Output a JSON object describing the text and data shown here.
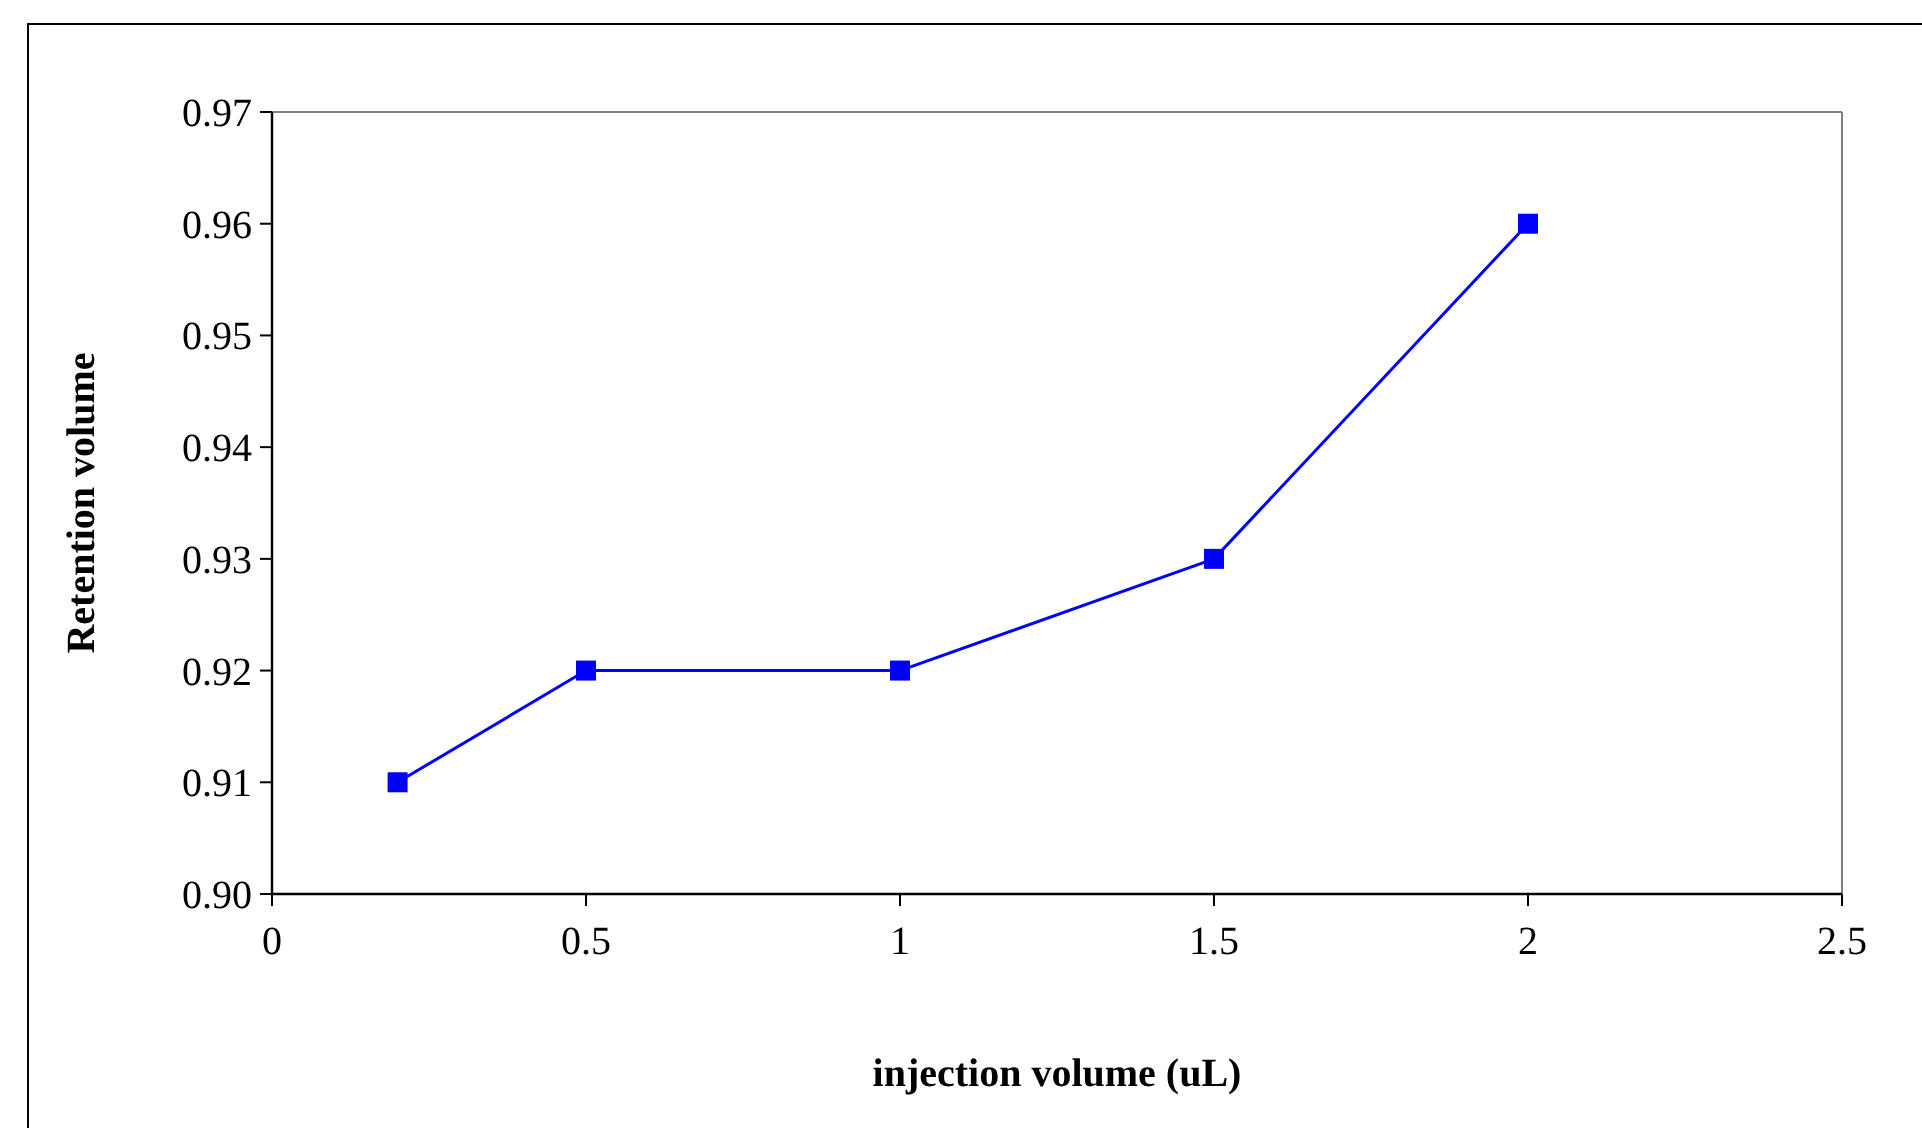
{
  "chart_data": {
    "type": "line",
    "xlabel": "injection volume (uL)",
    "ylabel": "Retention volume",
    "x": [
      0.2,
      0.5,
      1,
      1.5,
      2
    ],
    "series": [
      {
        "color": "#0000ff",
        "values": [
          0.91,
          0.92,
          0.92,
          0.93,
          0.96
        ]
      }
    ],
    "xlim": [
      0,
      2.5
    ],
    "xticks": [
      0,
      0.5,
      1,
      1.5,
      2,
      2.5
    ],
    "ylim": [
      0.9,
      0.97
    ],
    "yticks": [
      {
        "value": 0.9,
        "label": "0.90"
      },
      {
        "value": 0.91,
        "label": "0.91"
      },
      {
        "value": 0.92,
        "label": "0.92"
      },
      {
        "value": 0.93,
        "label": "0.93"
      },
      {
        "value": 0.94,
        "label": "0.94"
      },
      {
        "value": 0.95,
        "label": "0.95"
      },
      {
        "value": 0.96,
        "label": "0.96"
      },
      {
        "value": 0.97,
        "label": "0.97"
      }
    ],
    "marker": "square",
    "line_style": "solid",
    "grid": false
  }
}
